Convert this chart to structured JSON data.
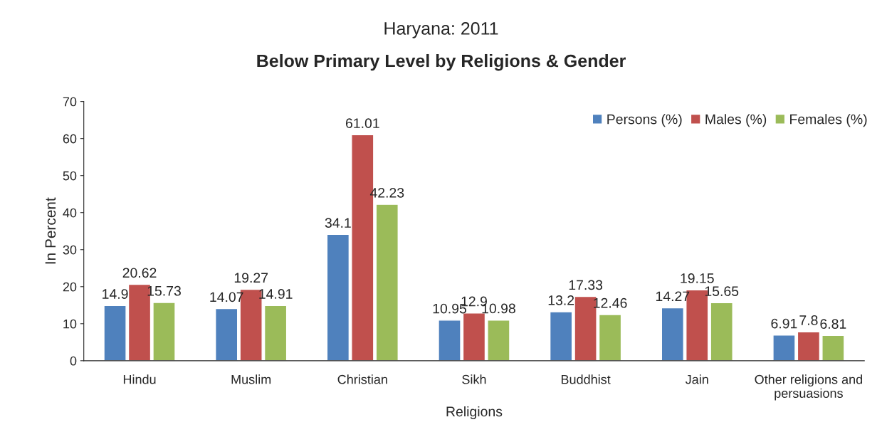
{
  "chart_data": {
    "type": "bar",
    "title": "Haryana: 2011",
    "subtitle": "Below Primary Level by Religions & Gender",
    "xlabel": "Religions",
    "ylabel": "In Percent",
    "categories": [
      "Hindu",
      "Muslim",
      "Christian",
      "Sikh",
      "Buddhist",
      "Jain",
      "Other religions and persuasions"
    ],
    "series": [
      {
        "name": "Persons (%)",
        "color": "#4f81bd",
        "values": [
          14.9,
          14.07,
          34.1,
          10.95,
          13.2,
          14.27,
          6.91
        ]
      },
      {
        "name": "Males (%)",
        "color": "#c0504d",
        "values": [
          20.62,
          19.27,
          61.01,
          12.9,
          17.33,
          19.15,
          7.8
        ]
      },
      {
        "name": "Females (%)",
        "color": "#9bbb59",
        "values": [
          15.73,
          14.91,
          42.23,
          10.98,
          12.46,
          15.65,
          6.81
        ]
      }
    ],
    "ylim": [
      0,
      70
    ],
    "yticks": [
      0,
      10,
      20,
      30,
      40,
      50,
      60,
      70
    ],
    "grid": false,
    "legend": "top right",
    "data_labels": true
  }
}
